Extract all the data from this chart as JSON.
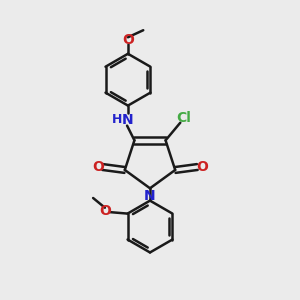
{
  "background_color": "#ebebeb",
  "bond_color": "#1a1a1a",
  "bond_width": 1.8,
  "N_color": "#2222cc",
  "O_color": "#cc2222",
  "Cl_color": "#44aa44",
  "figsize": [
    3.0,
    3.0
  ],
  "dpi": 100,
  "xlim": [
    0,
    10
  ],
  "ylim": [
    0,
    10
  ]
}
